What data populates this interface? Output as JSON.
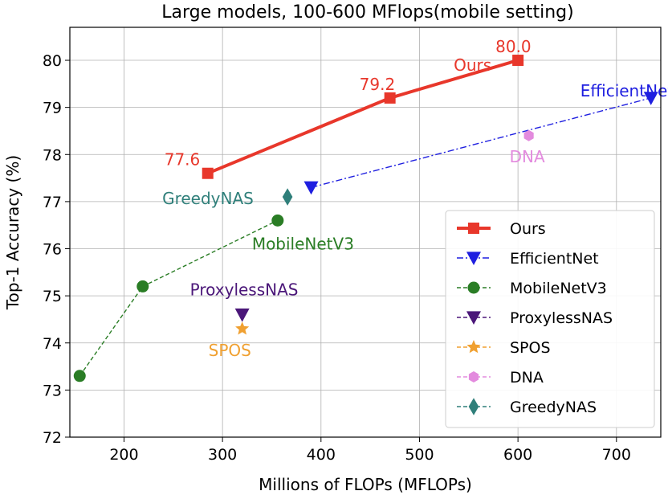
{
  "chart_data": {
    "type": "line",
    "title": "Large models, 100-600 MFlops(mobile setting)",
    "xlabel": "Millions of FLOPs (MFLOPs)",
    "ylabel": "Top-1 Accuracy (%)",
    "xlim": [
      145,
      745
    ],
    "ylim": [
      72,
      80.7
    ],
    "xticks": [
      200,
      300,
      400,
      500,
      600,
      700
    ],
    "yticks": [
      72,
      73,
      74,
      75,
      76,
      77,
      78,
      79,
      80
    ],
    "grid": true,
    "legend_position": "lower right",
    "series": [
      {
        "name": "Ours",
        "color": "#e8372b",
        "marker": "square",
        "linestyle": "solid",
        "x": [
          285,
          470,
          600
        ],
        "y": [
          77.6,
          79.2,
          80.0
        ],
        "data_labels": [
          "77.6",
          "79.2",
          "80.0"
        ],
        "annotation": "Ours"
      },
      {
        "name": "EfficientNet",
        "color": "#1f1fe0",
        "marker": "triangle-down",
        "linestyle": "dashdot",
        "x": [
          390,
          735
        ],
        "y": [
          77.3,
          79.2
        ],
        "annotation": "EfficientNet"
      },
      {
        "name": "MobileNetV3",
        "color": "#2a7d25",
        "marker": "circle",
        "linestyle": "dashed",
        "x": [
          155,
          219,
          356
        ],
        "y": [
          73.3,
          75.2,
          76.6
        ],
        "annotation": "MobileNetV3"
      },
      {
        "name": "ProxylessNAS",
        "color": "#4b1779",
        "marker": "triangle-down",
        "linestyle": "dashed",
        "x": [
          320
        ],
        "y": [
          74.6
        ],
        "annotation": "ProxylessNAS"
      },
      {
        "name": "SPOS",
        "color": "#f0a030",
        "marker": "star",
        "linestyle": "dashed",
        "x": [
          320
        ],
        "y": [
          74.3
        ],
        "annotation": "SPOS"
      },
      {
        "name": "DNA",
        "color": "#e38bde",
        "marker": "hexagon",
        "linestyle": "dashed",
        "x": [
          611
        ],
        "y": [
          78.4
        ],
        "annotation": "DNA"
      },
      {
        "name": "GreedyNAS",
        "color": "#2f7f7a",
        "marker": "diamond",
        "linestyle": "dashed",
        "x": [
          366
        ],
        "y": [
          77.1
        ],
        "annotation": "GreedyNAS"
      }
    ]
  }
}
